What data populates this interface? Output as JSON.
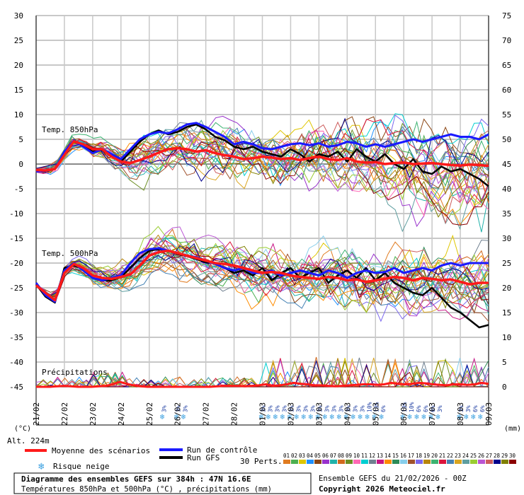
{
  "chart_data": {
    "type": "line",
    "panels": {
      "t850": {
        "label": "Temp. 850hPa",
        "center": 1.5,
        "amplitude": 3.5
      },
      "t500": {
        "label": "Temp. 500hPa",
        "center": -21.5,
        "amplitude": 3.5
      },
      "precip": {
        "label": "Précipitations",
        "base": -45
      }
    },
    "left_axis": {
      "ticks": [
        30,
        25,
        20,
        15,
        10,
        5,
        0,
        -5,
        -10,
        -15,
        -20,
        -25,
        -30,
        -35,
        -40,
        -45
      ],
      "range": [
        -45,
        30
      ],
      "unit": "(°C)"
    },
    "right_axis": {
      "ticks": [
        75,
        70,
        65,
        60,
        55,
        50,
        45,
        40,
        35,
        30,
        25,
        20,
        15,
        10,
        5,
        0
      ],
      "unit": "(mm)"
    },
    "x_labels": [
      "21/02",
      "22/02",
      "23/02",
      "24/02",
      "25/02",
      "26/02",
      "27/02",
      "28/02",
      "01/03",
      "02/03",
      "03/03",
      "04/03",
      "05/03",
      "06/03",
      "07/03",
      "08/03",
      "09/03"
    ],
    "ensemble": {
      "colors": [
        "#e07b20",
        "#4caf50",
        "#dfc600",
        "#1e90ff",
        "#8b4513",
        "#9932cc",
        "#20b2aa",
        "#d2691e",
        "#6b8e23",
        "#ff69b4",
        "#00ced1",
        "#708090",
        "#c71585",
        "#ff8c00",
        "#2e8b57",
        "#87ceeb",
        "#a0522d",
        "#7b68ee",
        "#b8860b",
        "#3cb371",
        "#dc143c",
        "#4682b4",
        "#daa520",
        "#5f9ea0",
        "#9acd32",
        "#ba55d3",
        "#cd5c5c",
        "#00008b",
        "#808000",
        "#8b0000"
      ]
    },
    "t850_mean": [
      -1.2,
      -1.3,
      -1.0,
      1.8,
      4.6,
      4.0,
      3.0,
      3.0,
      1.5,
      0.5,
      0.2,
      0.8,
      1.5,
      2.3,
      3.0,
      3.2,
      3.0,
      2.5,
      2.8,
      2.2,
      1.8,
      1.5,
      1.0,
      1.2,
      1.5,
      1.3,
      1.0,
      1.2,
      0.8,
      1.2,
      1.5,
      1.0,
      0.8,
      1.2,
      0.5,
      0.3,
      0.4,
      0.0,
      0.2,
      0.3,
      0.0,
      0.1,
      0.2,
      0.0,
      -0.2,
      -0.3,
      -0.1,
      -0.2,
      -0.4
    ],
    "t850_control": [
      -1.5,
      -1.4,
      -1.0,
      2.5,
      4.8,
      3.5,
      2.2,
      3.0,
      2.0,
      1.0,
      3.0,
      5.0,
      6.0,
      6.5,
      6.2,
      7.0,
      8.0,
      8.3,
      7.5,
      6.5,
      5.5,
      4.0,
      4.5,
      4.0,
      3.2,
      3.0,
      3.5,
      4.0,
      4.2,
      3.8,
      4.2,
      3.5,
      3.8,
      4.5,
      4.2,
      3.5,
      4.0,
      3.5,
      4.0,
      4.5,
      5.0,
      4.5,
      5.0,
      5.5,
      6.0,
      5.5,
      5.5,
      5.0,
      6.0
    ],
    "t850_gfs": [
      -1.3,
      -1.5,
      -1.0,
      2.0,
      4.5,
      3.8,
      2.5,
      2.8,
      1.5,
      0.5,
      2.5,
      4.5,
      6.0,
      6.8,
      6.0,
      6.5,
      7.5,
      8.0,
      7.0,
      5.5,
      4.8,
      3.5,
      3.0,
      3.5,
      2.5,
      2.0,
      1.5,
      3.0,
      2.0,
      0.5,
      2.0,
      1.5,
      2.5,
      0.5,
      3.0,
      1.5,
      0.5,
      2.0,
      0.0,
      -1.0,
      1.0,
      -1.5,
      -2.0,
      -0.5,
      -1.5,
      -1.0,
      -2.0,
      -3.0,
      -4.5
    ],
    "t500_mean": [
      -24.5,
      -26.0,
      -27.5,
      -22.0,
      -20.2,
      -21.0,
      -22.5,
      -23.0,
      -23.2,
      -22.8,
      -22.3,
      -20.5,
      -18.5,
      -17.8,
      -17.5,
      -18.0,
      -18.5,
      -19.0,
      -19.5,
      -20.0,
      -20.2,
      -20.5,
      -21.0,
      -21.5,
      -22.0,
      -21.8,
      -22.0,
      -22.5,
      -22.8,
      -23.0,
      -23.2,
      -22.8,
      -23.0,
      -23.5,
      -23.3,
      -23.8,
      -23.5,
      -23.2,
      -22.8,
      -23.0,
      -23.5,
      -23.0,
      -23.2,
      -23.5,
      -23.3,
      -23.8,
      -24.3,
      -24.0,
      -24.0
    ],
    "t500_control": [
      -24.0,
      -26.5,
      -27.8,
      -21.5,
      -20.0,
      -21.5,
      -23.0,
      -23.5,
      -23.0,
      -22.5,
      -20.0,
      -18.0,
      -17.2,
      -17.0,
      -17.5,
      -18.0,
      -18.5,
      -18.8,
      -19.5,
      -20.2,
      -21.0,
      -21.5,
      -21.0,
      -22.0,
      -22.0,
      -21.5,
      -22.5,
      -22.0,
      -21.5,
      -22.0,
      -22.5,
      -21.5,
      -22.0,
      -23.0,
      -22.0,
      -21.5,
      -22.0,
      -21.8,
      -21.0,
      -22.0,
      -21.5,
      -21.0,
      -21.5,
      -20.5,
      -20.0,
      -20.5,
      -20.0,
      -20.0,
      -20.0
    ],
    "t500_gfs": [
      -24.3,
      -26.8,
      -28.0,
      -21.0,
      -20.5,
      -21.2,
      -23.0,
      -23.5,
      -23.5,
      -22.8,
      -21.0,
      -19.0,
      -17.5,
      -17.2,
      -17.5,
      -18.2,
      -18.6,
      -19.2,
      -19.8,
      -20.0,
      -21.0,
      -22.0,
      -21.5,
      -22.5,
      -21.0,
      -23.5,
      -22.0,
      -21.0,
      -23.0,
      -22.0,
      -21.0,
      -24.0,
      -22.5,
      -21.5,
      -23.0,
      -21.0,
      -23.5,
      -22.0,
      -24.0,
      -25.0,
      -26.0,
      -26.5,
      -25.0,
      -27.0,
      -29.0,
      -30.0,
      -31.5,
      -33.0,
      -32.5
    ],
    "precip_mean": [
      0,
      0,
      0,
      0.1,
      0.2,
      0.1,
      0,
      0,
      0,
      0.1,
      0.2,
      0.5,
      1.0,
      0.6,
      0.3,
      0.1,
      0,
      0,
      0,
      0,
      0,
      0,
      0,
      0,
      0,
      0,
      0.1,
      0.2,
      0.2,
      0.2,
      0.1,
      0.2,
      0.3,
      0.5,
      0.2,
      0.3,
      0.5,
      0.8,
      0.6,
      0.5,
      0.3,
      0.3,
      0.2,
      0.1,
      0.2,
      0.3,
      0.4,
      0.5,
      0.5,
      0.4,
      0.5,
      0.8,
      0.6,
      0.5,
      0.6,
      0.8,
      0.7,
      0.5,
      0.4,
      0.3,
      0.5,
      0.5,
      0.4,
      0.5,
      0.8,
      0.6
    ],
    "snow_risk": [
      {
        "x": 4.5,
        "label": "3%"
      },
      {
        "x": 5.0,
        "label": "3%"
      },
      {
        "x": 5.25,
        "label": "3%"
      },
      {
        "x": 8.0,
        "label": "3%"
      },
      {
        "x": 8.25,
        "label": "3%"
      },
      {
        "x": 8.5,
        "label": "3%"
      },
      {
        "x": 8.75,
        "label": "3%"
      },
      {
        "x": 9.0,
        "label": "3%"
      },
      {
        "x": 9.25,
        "label": "3%"
      },
      {
        "x": 9.5,
        "label": "3%"
      },
      {
        "x": 9.75,
        "label": "3%"
      },
      {
        "x": 10.0,
        "label": "3%"
      },
      {
        "x": 10.25,
        "label": "3%"
      },
      {
        "x": 10.5,
        "label": "3%"
      },
      {
        "x": 10.75,
        "label": "3%"
      },
      {
        "x": 11.0,
        "label": "3%"
      },
      {
        "x": 11.25,
        "label": "3%"
      },
      {
        "x": 11.5,
        "label": "3%"
      },
      {
        "x": 11.75,
        "label": "10%"
      },
      {
        "x": 12.0,
        "label": "10%"
      },
      {
        "x": 12.25,
        "label": "6%"
      },
      {
        "x": 13.0,
        "label": "10%"
      },
      {
        "x": 13.25,
        "label": "10%"
      },
      {
        "x": 13.5,
        "label": "6%"
      },
      {
        "x": 13.75,
        "label": "6%"
      },
      {
        "x": 14.0,
        "label": "6%"
      },
      {
        "x": 14.25,
        "label": "3%"
      },
      {
        "x": 15.0,
        "label": "3%"
      },
      {
        "x": 15.25,
        "label": "3%"
      },
      {
        "x": 15.5,
        "label": "6%"
      },
      {
        "x": 15.75,
        "label": "6%"
      }
    ]
  },
  "alt_label": "Alt. 224m",
  "legend": {
    "mean": {
      "label": "Moyenne des scénarios",
      "color": "#ff1a1a"
    },
    "control": {
      "label": "Run de contrôle",
      "color": "#1a1aff"
    },
    "gfs": {
      "label": "Run GFS",
      "color": "#000000"
    },
    "snow": {
      "label": "Risque neige"
    },
    "perts_label": "30 Perts.",
    "perts_numbers": [
      "01",
      "02",
      "03",
      "04",
      "05",
      "06",
      "07",
      "08",
      "09",
      "10",
      "11",
      "12",
      "13",
      "14",
      "15",
      "16",
      "17",
      "18",
      "19",
      "20",
      "21",
      "22",
      "23",
      "24",
      "25",
      "26",
      "27",
      "28",
      "29",
      "30"
    ]
  },
  "footer": {
    "box_title": "Diagramme des ensembles GEFS sur 384h : 47N 16.6E",
    "box_subtitle": "Températures 850hPa et 500hPa (°C) , précipitations (mm)",
    "ensemble_date": "Ensemble GEFS du 21/02/2026 - 00Z",
    "copyright": "Copyright 2026 Meteociel.fr"
  }
}
